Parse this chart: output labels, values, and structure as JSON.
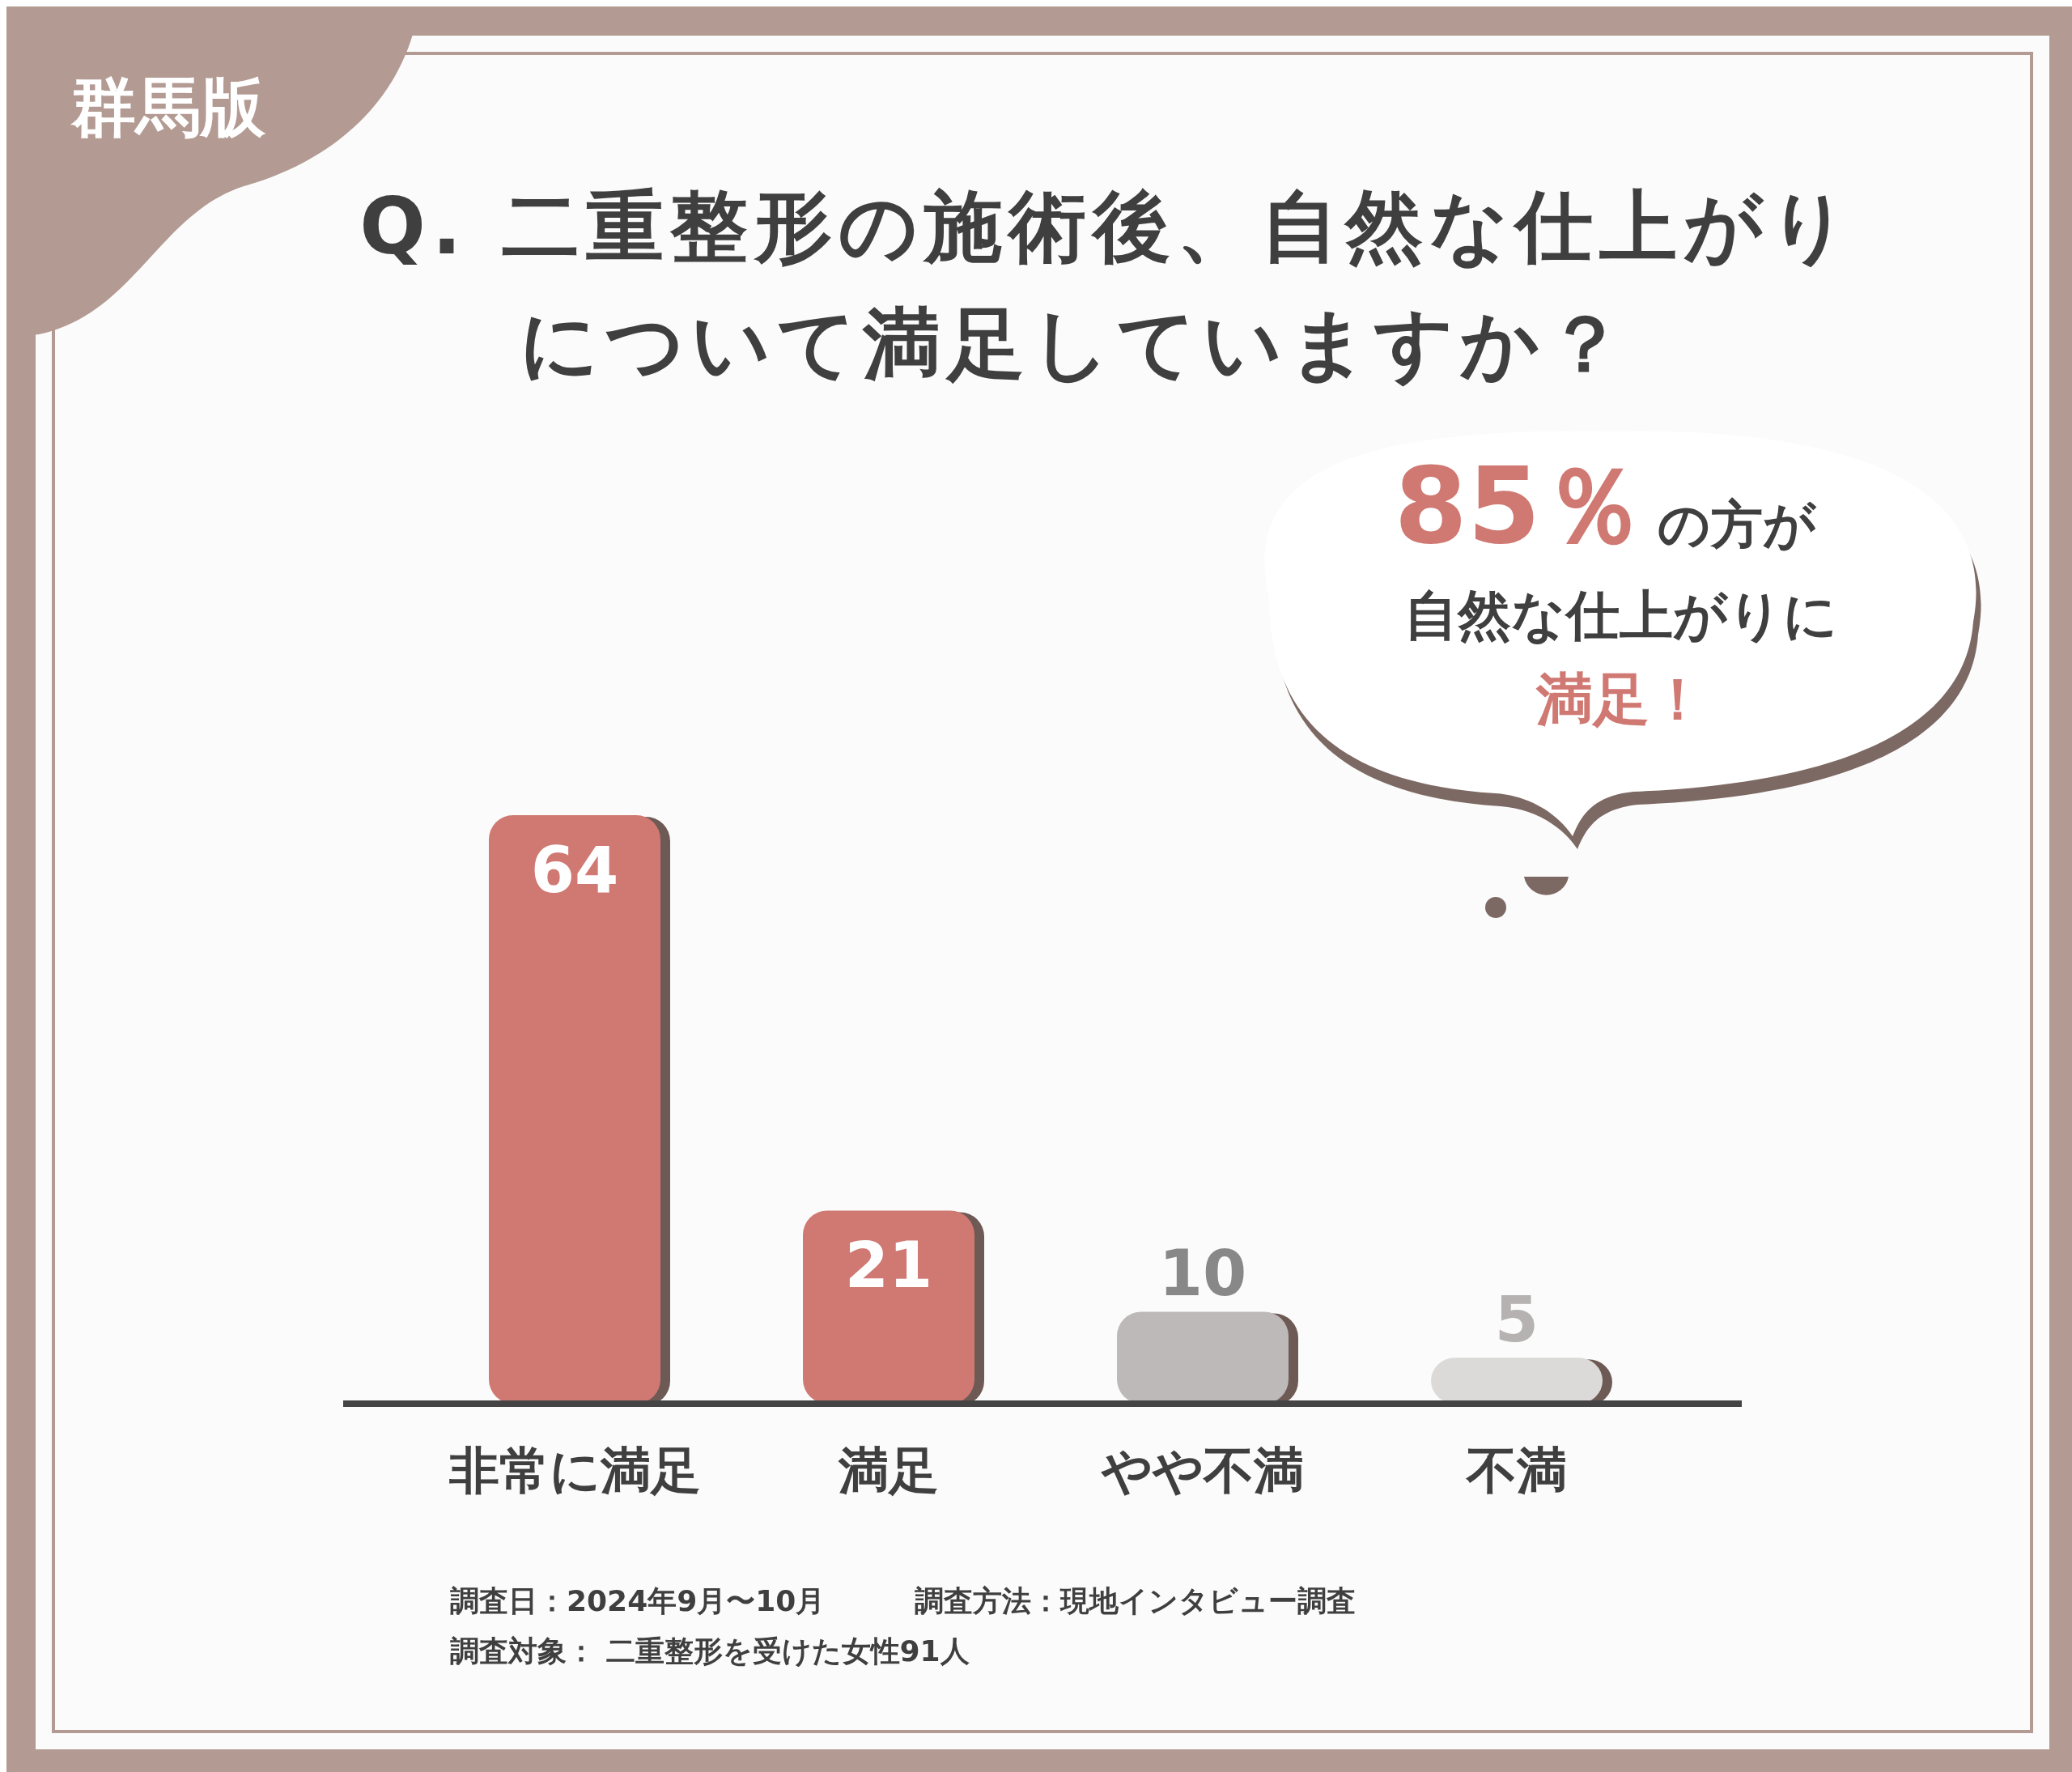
{
  "chart_data": {
    "type": "bar",
    "title": "Q. 二重整形の施術後、自然な仕上がりについて満足していますか？",
    "categories": [
      "非常に満足",
      "満足",
      "やや不満",
      "不満"
    ],
    "values": [
      64,
      21,
      10,
      5
    ],
    "colors": [
      "#d07872",
      "#d07872",
      "#bdb9b8",
      "#dcdad9"
    ],
    "data_labels": true,
    "annotations": [
      "群馬版",
      "85％",
      "の方が",
      "自然な仕上がりに",
      "満足！",
      "調査日：2024年9月〜10月",
      "調査方法：現地インタビュー調査",
      "調査対象： 二重整形を受けた女性91人"
    ]
  }
}
